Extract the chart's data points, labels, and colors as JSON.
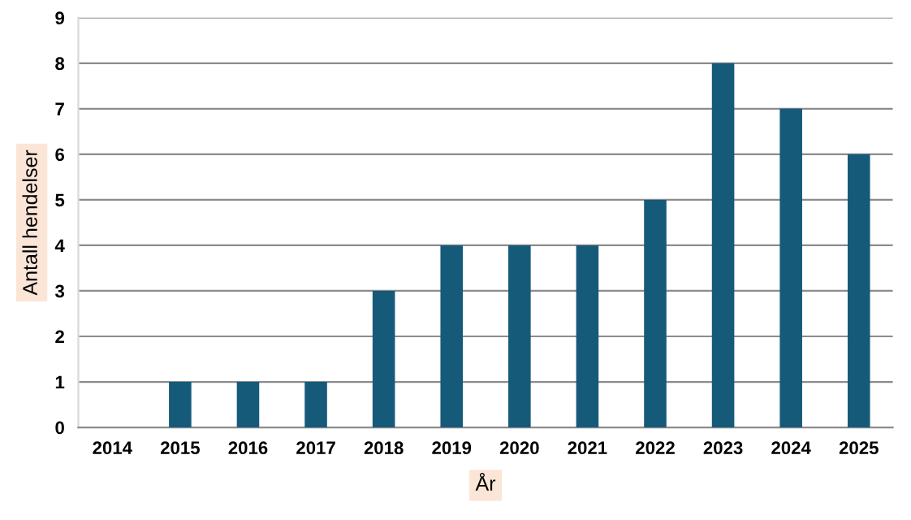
{
  "chart_data": {
    "type": "bar",
    "xlabel": "År",
    "ylabel": "Antall hendelser",
    "categories": [
      "2014",
      "2015",
      "2016",
      "2017",
      "2018",
      "2019",
      "2020",
      "2021",
      "2022",
      "2023",
      "2024",
      "2025"
    ],
    "values": [
      0,
      1,
      1,
      1,
      3,
      4,
      4,
      4,
      5,
      8,
      7,
      6
    ],
    "color": "#165a7a",
    "ylim": [
      0,
      9
    ],
    "yticks": [
      0,
      1,
      2,
      3,
      4,
      5,
      6,
      7,
      8,
      9
    ],
    "grid": "y",
    "legend": false
  }
}
